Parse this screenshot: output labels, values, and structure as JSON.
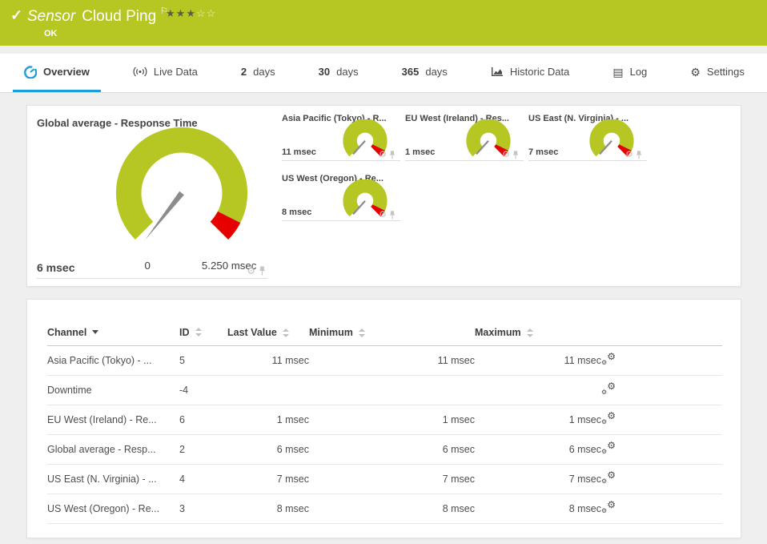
{
  "colors": {
    "status_green": "#b6c723",
    "accent_blue": "#1c9ed9",
    "alert_red": "#e60000",
    "needle_gray": "#8c8c8c"
  },
  "header": {
    "kind": "Sensor",
    "title": "Cloud Ping",
    "status": "OK",
    "rating": {
      "filled": 3,
      "total": 5
    }
  },
  "tabs": [
    {
      "label": "Overview",
      "icon": "gauge-icon",
      "active": true
    },
    {
      "label": "Live Data",
      "icon": "broadcast-icon",
      "active": false
    },
    {
      "num": "2",
      "suffix": "days",
      "active": false
    },
    {
      "num": "30",
      "suffix": "days",
      "active": false
    },
    {
      "num": "365",
      "suffix": "days",
      "active": false
    },
    {
      "label": "Historic Data",
      "icon": "area-chart-icon",
      "active": false
    },
    {
      "label": "Log",
      "icon": "log-icon",
      "active": false
    },
    {
      "label": "Settings",
      "icon": "gear-icon",
      "active": false
    }
  ],
  "gauges": {
    "main": {
      "title": "Global average - Response Time",
      "value_label": "6 msec",
      "value": 6,
      "unit": "msec",
      "scale_min_label": "0",
      "scale_max_label": "5.250 msec",
      "scale_min": 0,
      "scale_max": 5250
    },
    "small": [
      {
        "title": "Asia Pacific (Tokyo) - R...",
        "value_label": "11 msec",
        "value": 11
      },
      {
        "title": "EU West (Ireland) - Res...",
        "value_label": "1 msec",
        "value": 1
      },
      {
        "title": "US East (N. Virginia) - ...",
        "value_label": "7 msec",
        "value": 7
      },
      {
        "title": "US West (Oregon) - Re...",
        "value_label": "8 msec",
        "value": 8
      }
    ]
  },
  "table": {
    "headers": {
      "channel": "Channel",
      "id": "ID",
      "last_value": "Last Value",
      "minimum": "Minimum",
      "maximum": "Maximum"
    },
    "sorted_by": "Channel",
    "rows": [
      {
        "channel": "Asia Pacific (Tokyo) - ...",
        "id": "5",
        "last": "11 msec",
        "min": "11 msec",
        "max": "11 msec"
      },
      {
        "channel": "Downtime",
        "id": "-4",
        "last": "",
        "min": "",
        "max": ""
      },
      {
        "channel": "EU West (Ireland) - Re...",
        "id": "6",
        "last": "1 msec",
        "min": "1 msec",
        "max": "1 msec"
      },
      {
        "channel": "Global average - Resp...",
        "id": "2",
        "last": "6 msec",
        "min": "6 msec",
        "max": "6 msec"
      },
      {
        "channel": "US East (N. Virginia) - ...",
        "id": "4",
        "last": "7 msec",
        "min": "7 msec",
        "max": "7 msec"
      },
      {
        "channel": "US West (Oregon) - Re...",
        "id": "3",
        "last": "8 msec",
        "min": "8 msec",
        "max": "8 msec"
      }
    ]
  }
}
